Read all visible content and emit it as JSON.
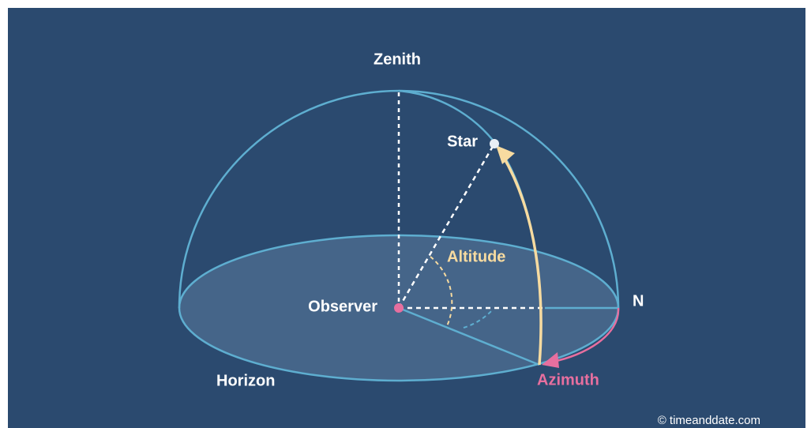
{
  "labels": {
    "zenith": "Zenith",
    "star": "Star",
    "altitude": "Altitude",
    "observer": "Observer",
    "north": "N",
    "horizon": "Horizon",
    "azimuth": "Azimuth"
  },
  "credit": "© timeanddate.com"
}
